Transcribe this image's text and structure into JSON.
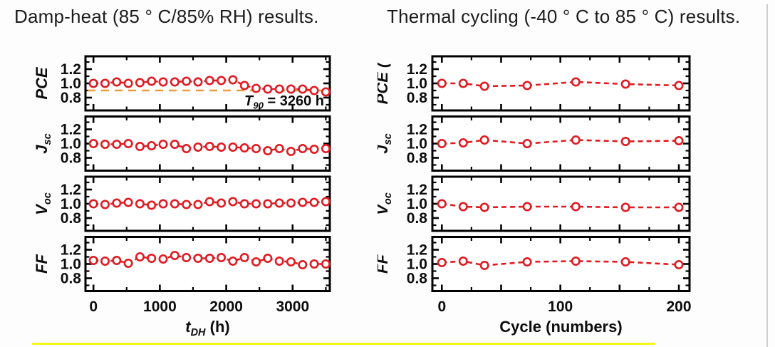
{
  "colors": {
    "series": "#e01b22",
    "reference": "#ee9d3e",
    "axis": "#000000",
    "text": "#0d0d0d",
    "underline": "#f8f815"
  },
  "chart_data": [
    {
      "type": "line",
      "id": "damp-heat",
      "title": "Damp-heat (85 ° C/85% RH) results.",
      "xlabel": {
        "main": "t",
        "sub": "DH",
        "post": " (h)",
        "italic_main": true
      },
      "x_ticks_labeled": [
        0,
        1000,
        2000,
        3000
      ],
      "x_tick_marks": [
        0,
        1000,
        2000,
        3000
      ],
      "x_minor_step": 500,
      "xlim": [
        -120,
        3560
      ],
      "ylim": [
        0.62,
        1.38
      ],
      "y_ticks": [
        0.8,
        1.0,
        1.2
      ],
      "y_minor_step": 0.1,
      "grid": false,
      "legend": "none",
      "marker": "open-circle",
      "line_style": "dashed",
      "x": [
        0,
        175,
        350,
        525,
        700,
        875,
        1050,
        1225,
        1400,
        1575,
        1750,
        1925,
        2100,
        2275,
        2450,
        2625,
        2800,
        2975,
        3150,
        3325,
        3500
      ],
      "panels": [
        {
          "label": {
            "main": "PCE",
            "sub": "",
            "post": ""
          },
          "values": [
            1.0,
            1.0,
            1.02,
            1.0,
            1.01,
            1.03,
            1.02,
            1.02,
            1.03,
            1.02,
            1.04,
            1.04,
            1.05,
            0.97,
            0.93,
            0.92,
            0.92,
            0.92,
            0.92,
            0.9,
            0.88
          ],
          "ref_line": {
            "y": 0.9
          },
          "annotation": {
            "t": "T",
            "sub": "90",
            "rest": " = 3260 h"
          }
        },
        {
          "label": {
            "main": "J",
            "sub": "sc",
            "post": ""
          },
          "values": [
            1.0,
            0.99,
            0.99,
            1.0,
            0.96,
            0.97,
            0.99,
            0.99,
            0.93,
            0.95,
            0.96,
            0.95,
            0.95,
            0.94,
            0.93,
            0.9,
            0.93,
            0.89,
            0.93,
            0.92,
            0.93
          ]
        },
        {
          "label": {
            "main": "V",
            "sub": "oc",
            "post": ""
          },
          "values": [
            1.0,
            0.99,
            1.01,
            1.02,
            1.0,
            0.98,
            1.0,
            1.0,
            0.99,
            0.99,
            1.03,
            1.01,
            1.03,
            1.0,
            1.0,
            1.0,
            1.01,
            1.01,
            1.02,
            1.02,
            1.03
          ]
        },
        {
          "label": {
            "main": "FF",
            "sub": "",
            "post": ""
          },
          "values": [
            1.05,
            1.04,
            1.05,
            1.01,
            1.1,
            1.08,
            1.07,
            1.12,
            1.09,
            1.08,
            1.08,
            1.09,
            1.04,
            1.09,
            1.03,
            1.08,
            1.04,
            1.03,
            0.99,
            1.0,
            1.0
          ]
        }
      ]
    },
    {
      "type": "line",
      "id": "thermal-cycling",
      "title": "Thermal cycling (-40 ° C to 85 ° C) results.",
      "xlabel": {
        "main": "Cycle (numbers)",
        "sub": "",
        "post": "",
        "italic_main": false
      },
      "x_ticks_labeled": [
        0,
        100,
        200
      ],
      "x_tick_marks": [
        0,
        50,
        100,
        150,
        200
      ],
      "x_minor_step": 25,
      "xlim": [
        -8,
        209
      ],
      "ylim": [
        0.62,
        1.38
      ],
      "y_ticks": [
        0.8,
        1.0,
        1.2
      ],
      "y_minor_step": 0.1,
      "grid": false,
      "legend": "none",
      "marker": "open-circle",
      "line_style": "dashed",
      "x": [
        0,
        18,
        36,
        72,
        113,
        155,
        200
      ],
      "panels": [
        {
          "label": {
            "main": "PCE",
            "sub": "",
            "post": " ("
          },
          "values": [
            1.0,
            1.0,
            0.96,
            0.97,
            1.02,
            0.99,
            0.97
          ]
        },
        {
          "label": {
            "main": "J",
            "sub": "sc",
            "post": ""
          },
          "values": [
            1.0,
            1.01,
            1.05,
            1.0,
            1.05,
            1.03,
            1.04
          ]
        },
        {
          "label": {
            "main": "V",
            "sub": "oc",
            "post": ""
          },
          "values": [
            1.0,
            0.96,
            0.95,
            0.96,
            0.96,
            0.95,
            0.95
          ]
        },
        {
          "label": {
            "main": "FF",
            "sub": "",
            "post": ""
          },
          "values": [
            1.02,
            1.04,
            0.98,
            1.03,
            1.04,
            1.03,
            0.99
          ]
        }
      ]
    }
  ]
}
